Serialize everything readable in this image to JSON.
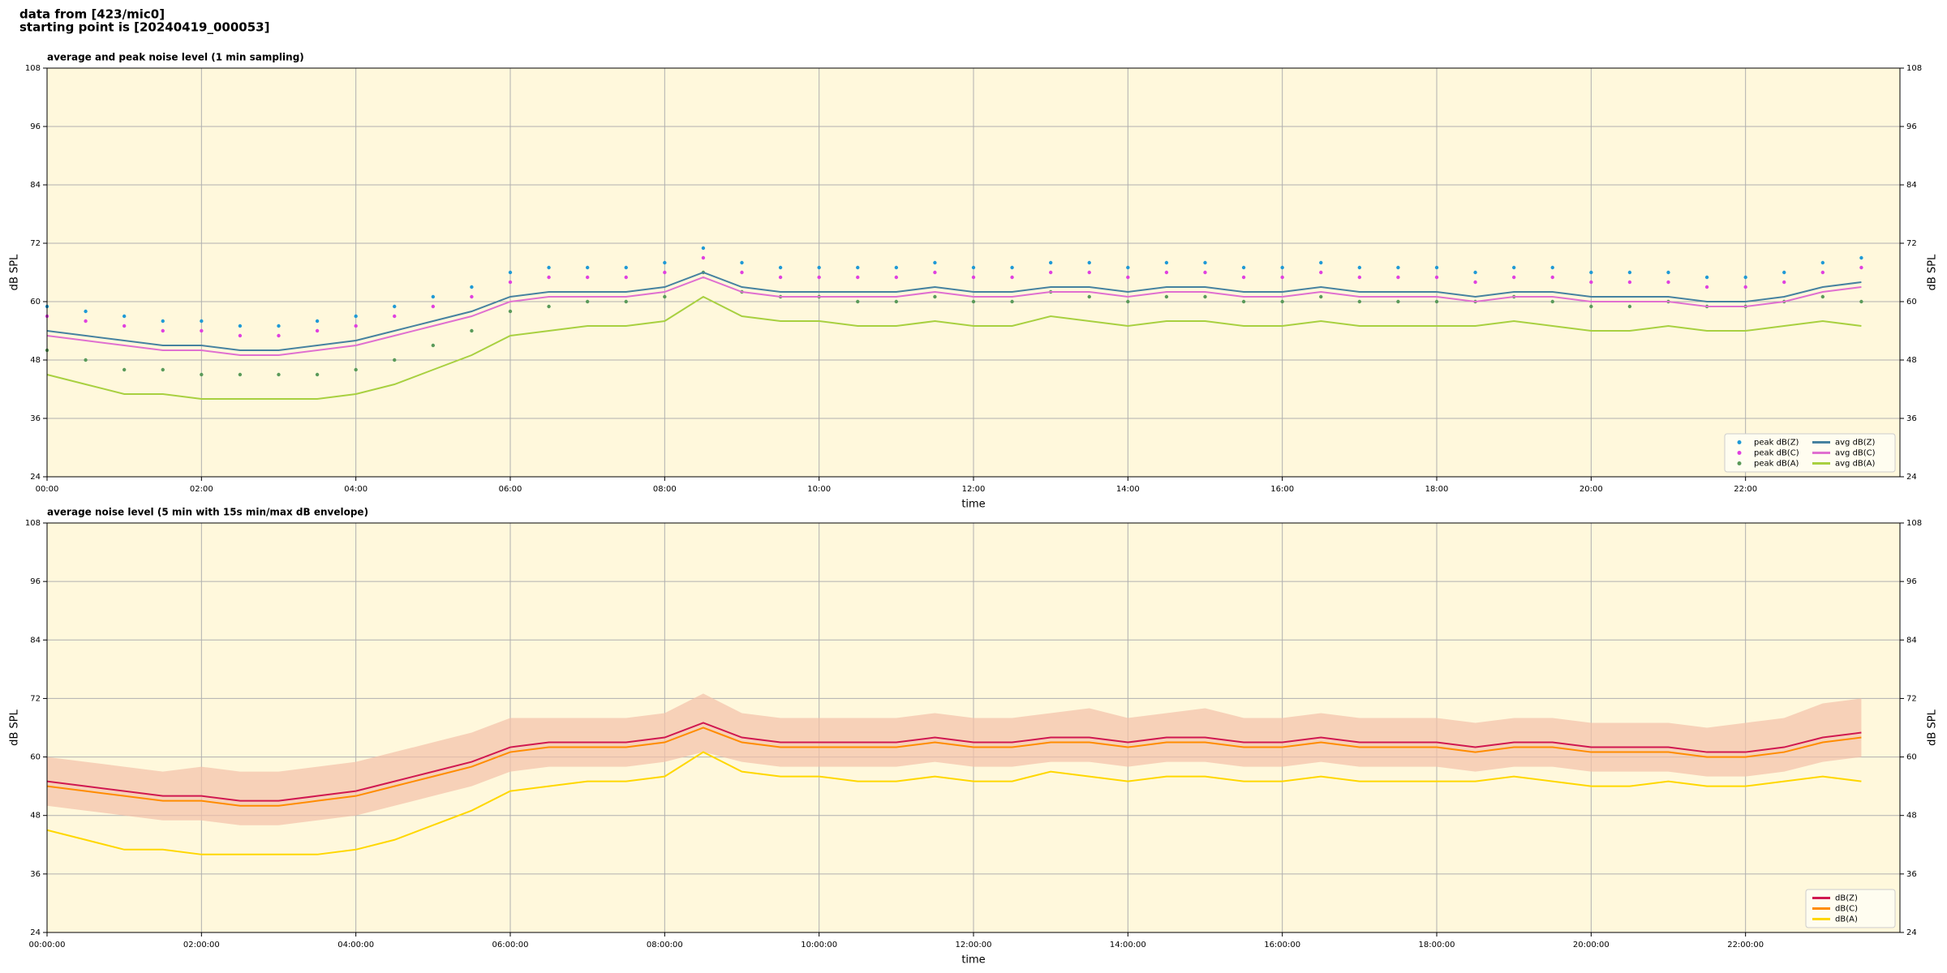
{
  "page_title": [
    "data from [423/mic0]",
    "starting point is [20240419_000053]"
  ],
  "chart_data": [
    {
      "type": "line",
      "title": "average and peak noise level (1 min sampling)",
      "x_label": "time",
      "y_label": "dB SPL",
      "x": [
        "00:00",
        "00:30",
        "01:00",
        "01:30",
        "02:00",
        "02:30",
        "03:00",
        "03:30",
        "04:00",
        "04:30",
        "05:00",
        "05:30",
        "06:00",
        "06:30",
        "07:00",
        "07:30",
        "08:00",
        "08:30",
        "09:00",
        "09:30",
        "10:00",
        "10:30",
        "11:00",
        "11:30",
        "12:00",
        "12:30",
        "13:00",
        "13:30",
        "14:00",
        "14:30",
        "15:00",
        "15:30",
        "16:00",
        "16:30",
        "17:00",
        "17:30",
        "18:00",
        "18:30",
        "19:00",
        "19:30",
        "20:00",
        "20:30",
        "21:00",
        "21:30",
        "22:00",
        "22:30",
        "23:00",
        "23:30"
      ],
      "xlim": [
        "00:00",
        "24:00"
      ],
      "xticks": [
        "00:00",
        "02:00",
        "04:00",
        "06:00",
        "08:00",
        "10:00",
        "12:00",
        "14:00",
        "16:00",
        "18:00",
        "20:00",
        "22:00"
      ],
      "ylim": [
        24,
        108
      ],
      "yticks": [
        24,
        36,
        48,
        60,
        72,
        84,
        96,
        108
      ],
      "grid": true,
      "legend": "lower right",
      "legend_columns": 2,
      "background": "#fff8dc",
      "series": [
        {
          "name": "peak dB(Z)",
          "kind": "points",
          "color": "#1f9ad6",
          "values": [
            59,
            58,
            57,
            56,
            56,
            55,
            55,
            56,
            57,
            59,
            61,
            63,
            66,
            67,
            67,
            67,
            68,
            71,
            68,
            67,
            67,
            67,
            67,
            68,
            67,
            67,
            68,
            68,
            67,
            68,
            68,
            67,
            67,
            68,
            67,
            67,
            67,
            66,
            67,
            67,
            66,
            66,
            66,
            65,
            65,
            66,
            68,
            69
          ]
        },
        {
          "name": "peak dB(C)",
          "kind": "points",
          "color": "#e040e0",
          "values": [
            57,
            56,
            55,
            54,
            54,
            53,
            53,
            54,
            55,
            57,
            59,
            61,
            64,
            65,
            65,
            65,
            66,
            69,
            66,
            65,
            65,
            65,
            65,
            66,
            65,
            65,
            66,
            66,
            65,
            66,
            66,
            65,
            65,
            66,
            65,
            65,
            65,
            64,
            65,
            65,
            64,
            64,
            64,
            63,
            63,
            64,
            66,
            67
          ]
        },
        {
          "name": "peak dB(A)",
          "kind": "points",
          "color": "#5a9a5a",
          "values": [
            50,
            48,
            46,
            46,
            45,
            45,
            45,
            45,
            46,
            48,
            51,
            54,
            58,
            59,
            60,
            60,
            61,
            66,
            62,
            61,
            61,
            60,
            60,
            61,
            60,
            60,
            62,
            61,
            60,
            61,
            61,
            60,
            60,
            61,
            60,
            60,
            60,
            60,
            61,
            60,
            59,
            59,
            60,
            59,
            59,
            60,
            61,
            60
          ]
        },
        {
          "name": "avg dB(Z)",
          "kind": "line",
          "color": "#4682a0",
          "values": [
            54,
            53,
            52,
            51,
            51,
            50,
            50,
            51,
            52,
            54,
            56,
            58,
            61,
            62,
            62,
            62,
            63,
            66,
            63,
            62,
            62,
            62,
            62,
            63,
            62,
            62,
            63,
            63,
            62,
            63,
            63,
            62,
            62,
            63,
            62,
            62,
            62,
            61,
            62,
            62,
            61,
            61,
            61,
            60,
            60,
            61,
            63,
            64
          ]
        },
        {
          "name": "avg dB(C)",
          "kind": "line",
          "color": "#e070d0",
          "values": [
            53,
            52,
            51,
            50,
            50,
            49,
            49,
            50,
            51,
            53,
            55,
            57,
            60,
            61,
            61,
            61,
            62,
            65,
            62,
            61,
            61,
            61,
            61,
            62,
            61,
            61,
            62,
            62,
            61,
            62,
            62,
            61,
            61,
            62,
            61,
            61,
            61,
            60,
            61,
            61,
            60,
            60,
            60,
            59,
            59,
            60,
            62,
            63
          ]
        },
        {
          "name": "avg dB(A)",
          "kind": "line",
          "color": "#a8d040",
          "values": [
            45,
            43,
            41,
            41,
            40,
            40,
            40,
            40,
            41,
            43,
            46,
            49,
            53,
            54,
            55,
            55,
            56,
            61,
            57,
            56,
            56,
            55,
            55,
            56,
            55,
            55,
            57,
            56,
            55,
            56,
            56,
            55,
            55,
            56,
            55,
            55,
            55,
            55,
            56,
            55,
            54,
            54,
            55,
            54,
            54,
            55,
            56,
            55
          ]
        }
      ]
    },
    {
      "type": "line",
      "title": "average noise level (5 min with 15s min/max dB envelope)",
      "x_label": "time",
      "y_label": "dB SPL",
      "x": [
        "00:00:00",
        "00:30:00",
        "01:00:00",
        "01:30:00",
        "02:00:00",
        "02:30:00",
        "03:00:00",
        "03:30:00",
        "04:00:00",
        "04:30:00",
        "05:00:00",
        "05:30:00",
        "06:00:00",
        "06:30:00",
        "07:00:00",
        "07:30:00",
        "08:00:00",
        "08:30:00",
        "09:00:00",
        "09:30:00",
        "10:00:00",
        "10:30:00",
        "11:00:00",
        "11:30:00",
        "12:00:00",
        "12:30:00",
        "13:00:00",
        "13:30:00",
        "14:00:00",
        "14:30:00",
        "15:00:00",
        "15:30:00",
        "16:00:00",
        "16:30:00",
        "17:00:00",
        "17:30:00",
        "18:00:00",
        "18:30:00",
        "19:00:00",
        "19:30:00",
        "20:00:00",
        "20:30:00",
        "21:00:00",
        "21:30:00",
        "22:00:00",
        "22:30:00",
        "23:00:00",
        "23:30:00"
      ],
      "xlim": [
        "00:00:00",
        "24:00:00"
      ],
      "xticks": [
        "00:00:00",
        "02:00:00",
        "04:00:00",
        "06:00:00",
        "08:00:00",
        "10:00:00",
        "12:00:00",
        "14:00:00",
        "16:00:00",
        "18:00:00",
        "20:00:00",
        "22:00:00"
      ],
      "ylim": [
        24,
        108
      ],
      "yticks": [
        24,
        36,
        48,
        60,
        72,
        84,
        96,
        108
      ],
      "grid": true,
      "legend": "lower right",
      "legend_columns": 1,
      "background": "#fff8dc",
      "envelope": {
        "color": "#f4c0a8",
        "high": [
          60,
          59,
          58,
          57,
          58,
          57,
          57,
          58,
          59,
          61,
          63,
          65,
          68,
          68,
          68,
          68,
          69,
          73,
          69,
          68,
          68,
          68,
          68,
          69,
          68,
          68,
          69,
          70,
          68,
          69,
          70,
          68,
          68,
          69,
          68,
          68,
          68,
          67,
          68,
          68,
          67,
          67,
          67,
          66,
          67,
          68,
          71,
          72
        ],
        "low": [
          50,
          49,
          48,
          47,
          47,
          46,
          46,
          47,
          48,
          50,
          52,
          54,
          57,
          58,
          58,
          58,
          59,
          61,
          59,
          58,
          58,
          58,
          58,
          59,
          58,
          58,
          59,
          59,
          58,
          59,
          59,
          58,
          58,
          59,
          58,
          58,
          58,
          57,
          58,
          58,
          57,
          57,
          57,
          56,
          56,
          57,
          59,
          60
        ]
      },
      "series": [
        {
          "name": "dB(Z)",
          "kind": "line",
          "color": "#d01850",
          "values": [
            55,
            54,
            53,
            52,
            52,
            51,
            51,
            52,
            53,
            55,
            57,
            59,
            62,
            63,
            63,
            63,
            64,
            67,
            64,
            63,
            63,
            63,
            63,
            64,
            63,
            63,
            64,
            64,
            63,
            64,
            64,
            63,
            63,
            64,
            63,
            63,
            63,
            62,
            63,
            63,
            62,
            62,
            62,
            61,
            61,
            62,
            64,
            65
          ]
        },
        {
          "name": "dB(C)",
          "kind": "line",
          "color": "#ff8c00",
          "values": [
            54,
            53,
            52,
            51,
            51,
            50,
            50,
            51,
            52,
            54,
            56,
            58,
            61,
            62,
            62,
            62,
            63,
            66,
            63,
            62,
            62,
            62,
            62,
            63,
            62,
            62,
            63,
            63,
            62,
            63,
            63,
            62,
            62,
            63,
            62,
            62,
            62,
            61,
            62,
            62,
            61,
            61,
            61,
            60,
            60,
            61,
            63,
            64
          ]
        },
        {
          "name": "dB(A)",
          "kind": "line",
          "color": "#ffd700",
          "values": [
            45,
            43,
            41,
            41,
            40,
            40,
            40,
            40,
            41,
            43,
            46,
            49,
            53,
            54,
            55,
            55,
            56,
            61,
            57,
            56,
            56,
            55,
            55,
            56,
            55,
            55,
            57,
            56,
            55,
            56,
            56,
            55,
            55,
            56,
            55,
            55,
            55,
            55,
            56,
            55,
            54,
            54,
            55,
            54,
            54,
            55,
            56,
            55
          ]
        }
      ]
    }
  ]
}
